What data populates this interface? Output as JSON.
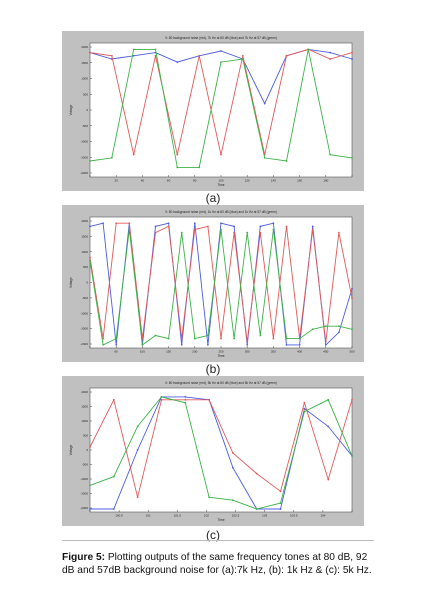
{
  "figure": {
    "caption_label": "Figure 5:",
    "caption_text": "Plotting outputs of the same frequency tones at 80 dB, 92 dB and 57dB background noise for (a):7k Hz, (b): 1k Hz & (c): 5k Hz."
  },
  "colors": {
    "frame_bg": "#c0c0c0",
    "plot_bg": "#ffffff",
    "blue": "#4b5de0",
    "red": "#e05a5a",
    "green": "#3db24a"
  },
  "chart_data": [
    {
      "type": "line",
      "panel_label": "(a)",
      "title": "0: 80 background noise (red), 7k Hz at 80 dB (blue) and 7k Hz at 57 dB (green)",
      "xlabel": "Time",
      "ylabel": "Voltage",
      "x": [
        0,
        1,
        2,
        3,
        4,
        5,
        6,
        7,
        8,
        9,
        10,
        11,
        12
      ],
      "x_tick_labels": [
        "",
        "20",
        "40",
        "60",
        "80",
        "100",
        "120",
        "140",
        "160",
        "180",
        ""
      ],
      "y_tick_labels": [
        "2000",
        "1500",
        "1000",
        "500",
        "0",
        "-500",
        "-1000",
        "-1500",
        "-2000"
      ],
      "ylim": [
        -2000,
        2200
      ],
      "grid": false,
      "series": [
        {
          "color": "blue",
          "values": [
            1900,
            1700,
            1800,
            1900,
            1600,
            1800,
            1950,
            1700,
            300,
            1800,
            2000,
            1900,
            1700
          ]
        },
        {
          "color": "red",
          "values": [
            1900,
            1800,
            -1300,
            1800,
            -1300,
            1800,
            -1300,
            1800,
            -1300,
            1800,
            2000,
            1700,
            1900
          ]
        },
        {
          "color": "green",
          "values": [
            -1500,
            -1400,
            2000,
            2000,
            -1700,
            -1700,
            1600,
            1700,
            -1400,
            -1500,
            2000,
            -1300,
            -1400
          ]
        }
      ]
    },
    {
      "type": "line",
      "panel_label": "(b)",
      "title": "0: 80 background noise (red), 1k Hz at 80 dB (blue) and 1k Hz at 57 dB (green)",
      "xlabel": "Time",
      "ylabel": "Voltage",
      "x": [
        0,
        1,
        2,
        3,
        4,
        5,
        6,
        7,
        8,
        9,
        10,
        11,
        12,
        13,
        14,
        15,
        16,
        17,
        18,
        19,
        20
      ],
      "x_tick_labels": [
        "",
        "60",
        "100",
        "150",
        "200",
        "250",
        "300",
        "350",
        "400",
        "450",
        "500"
      ],
      "y_tick_labels": [
        "2000",
        "1500",
        "1000",
        "500",
        "0",
        "-500",
        "-1000",
        "-1500",
        "-2000"
      ],
      "ylim": [
        -2000,
        2200
      ],
      "grid": false,
      "series": [
        {
          "color": "blue",
          "values": [
            1900,
            2000,
            -1900,
            2000,
            -1900,
            1900,
            2000,
            -1900,
            2000,
            -1900,
            2000,
            1900,
            -1900,
            1900,
            2000,
            -1900,
            -1900,
            1900,
            -1900,
            -1500,
            -100
          ]
        },
        {
          "color": "red",
          "values": [
            900,
            -1700,
            2000,
            2000,
            -1700,
            1700,
            1900,
            -1700,
            1800,
            1900,
            -1700,
            1700,
            -1800,
            1700,
            -1700,
            1900,
            -1700,
            1800,
            -1800,
            1700,
            -400
          ]
        },
        {
          "color": "green",
          "values": [
            800,
            -1900,
            -1700,
            1800,
            -1900,
            -1600,
            -1700,
            1700,
            -1700,
            -1600,
            1800,
            -1700,
            1700,
            -1600,
            1800,
            -1700,
            -1700,
            -1400,
            -1300,
            -1300,
            -1400
          ]
        }
      ]
    },
    {
      "type": "line",
      "panel_label": "(c)",
      "title": "0: 80 background noise (red), 5k Hz at 80 dB (blue) and 5k Hz at 57 dB (green)",
      "xlabel": "Time",
      "ylabel": "Voltage",
      "x": [
        0,
        1,
        2,
        3,
        4,
        5,
        6,
        7,
        8,
        9,
        10,
        11
      ],
      "x_tick_labels": [
        "",
        "100.5",
        "101",
        "101.5",
        "102",
        "102.5",
        "103",
        "103.5",
        "104",
        ""
      ],
      "y_tick_labels": [
        "2000",
        "1500",
        "1000",
        "500",
        "0",
        "-500",
        "-1000",
        "-1500",
        "-2000"
      ],
      "ylim": [
        -2000,
        2200
      ],
      "grid": false,
      "series": [
        {
          "color": "blue",
          "values": [
            -1900,
            -1900,
            100,
            1900,
            1900,
            1800,
            -500,
            -1900,
            -1900,
            1500,
            900,
            -100
          ]
        },
        {
          "color": "red",
          "values": [
            200,
            1800,
            -1500,
            1800,
            1800,
            1800,
            0,
            -700,
            -1300,
            1700,
            -900,
            1800
          ]
        },
        {
          "color": "green",
          "values": [
            -1100,
            -800,
            900,
            1900,
            1700,
            -1500,
            -1600,
            -1900,
            -1700,
            1400,
            1800,
            -100
          ]
        }
      ]
    }
  ]
}
